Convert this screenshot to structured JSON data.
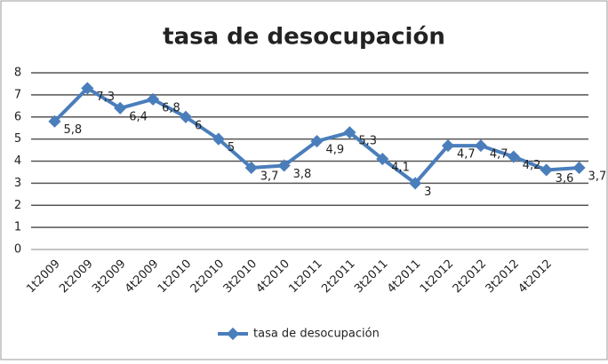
{
  "chart_data": {
    "type": "line",
    "title": "tasa de desocupación",
    "categories": [
      "1t2009",
      "2t2009",
      "3t2009",
      "4t2009",
      "1t2010",
      "2t2010",
      "3t2010",
      "4t2010",
      "1t2011",
      "2t2011",
      "3t2011",
      "4t2011",
      "1t2012",
      "2t2012",
      "3t2012",
      "4t2012",
      null
    ],
    "series": [
      {
        "name": "tasa de desocupación",
        "color": "#4a7ebb",
        "values": [
          5.8,
          7.3,
          6.4,
          6.8,
          6,
          5,
          3.7,
          3.8,
          4.9,
          5.3,
          4.1,
          3,
          4.7,
          4.7,
          4.2,
          3.6,
          3.7
        ],
        "value_labels": [
          "5,8",
          "7,3",
          "6,4",
          "6,8",
          "6",
          "5",
          "3,7",
          "3,8",
          "4,9",
          "5,3",
          "4,1",
          "3",
          "4,7",
          "4,7",
          "4,2",
          "3,6",
          "3,7"
        ]
      }
    ],
    "ylim": [
      0,
      8
    ],
    "yticks": [
      0,
      1,
      2,
      3,
      4,
      5,
      6,
      7,
      8
    ],
    "grid": true,
    "legend": "bottom"
  }
}
